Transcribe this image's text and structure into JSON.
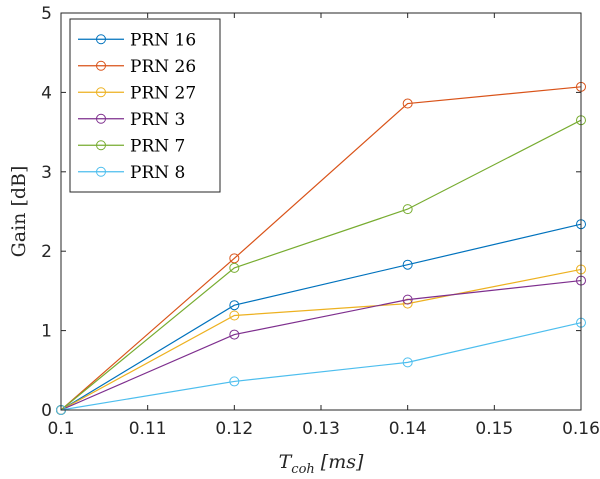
{
  "chart_data": {
    "type": "line",
    "x": [
      0.1,
      0.12,
      0.14,
      0.16
    ],
    "xlim": [
      0.1,
      0.16
    ],
    "ylim": [
      0,
      5
    ],
    "xticks": [
      "0.1",
      "0.11",
      "0.12",
      "0.13",
      "0.14",
      "0.15",
      "0.16"
    ],
    "yticks": [
      "0",
      "1",
      "2",
      "3",
      "4",
      "5"
    ],
    "xlabel_main": "T",
    "xlabel_sub": "coh",
    "xlabel_unit": "[ms]",
    "ylabel": "Gain [dB]",
    "grid": false,
    "legend_position": "top-left",
    "marker": "open-circle",
    "series": [
      {
        "name": "PRN 16",
        "color": "#0072BD",
        "values": [
          0,
          1.32,
          1.83,
          2.34
        ]
      },
      {
        "name": "PRN 26",
        "color": "#D95319",
        "values": [
          0,
          1.91,
          3.86,
          4.07
        ]
      },
      {
        "name": "PRN 27",
        "color": "#EDB120",
        "values": [
          0,
          1.19,
          1.34,
          1.77
        ]
      },
      {
        "name": "PRN 3",
        "color": "#7E2F8E",
        "values": [
          0,
          0.95,
          1.39,
          1.63
        ]
      },
      {
        "name": "PRN 7",
        "color": "#77AC30",
        "values": [
          0,
          1.79,
          2.53,
          3.65
        ]
      },
      {
        "name": "PRN 8",
        "color": "#4DBEEE",
        "values": [
          0,
          0.36,
          0.6,
          1.1
        ]
      }
    ]
  }
}
